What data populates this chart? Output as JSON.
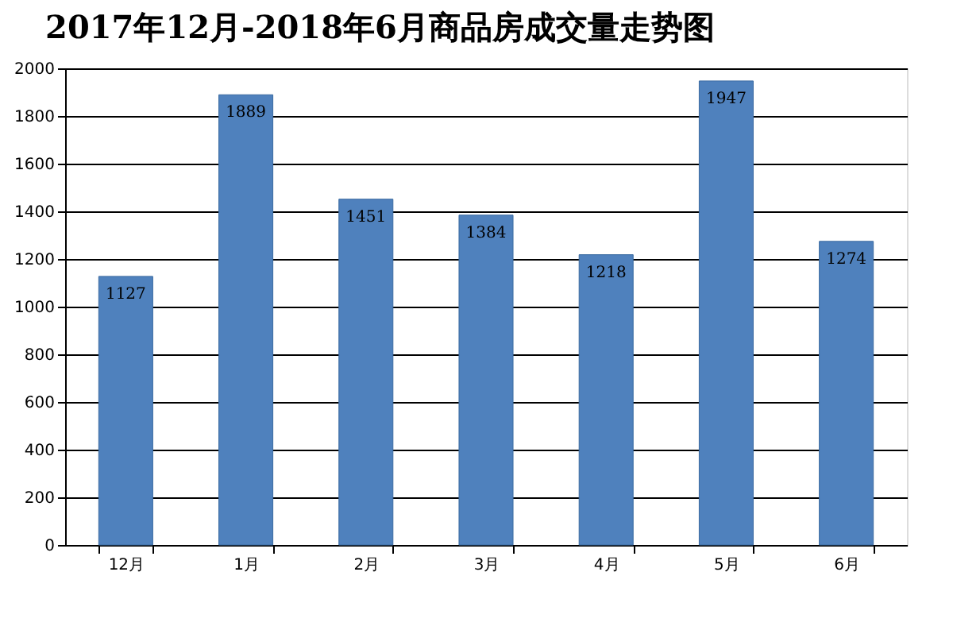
{
  "chart_data": {
    "type": "bar",
    "title": "2017年12月-2018年6月商品房成交量走势图",
    "categories": [
      "12月",
      "1月",
      "2月",
      "3月",
      "4月",
      "5月",
      "6月"
    ],
    "values": [
      1127,
      1889,
      1451,
      1384,
      1218,
      1947,
      1274
    ],
    "color": "#4f81bd",
    "ylim": [
      0,
      2000
    ],
    "yticks": [
      0,
      200,
      400,
      600,
      800,
      1000,
      1200,
      1400,
      1600,
      1800,
      2000
    ],
    "grid": "y",
    "data_labels": true
  }
}
